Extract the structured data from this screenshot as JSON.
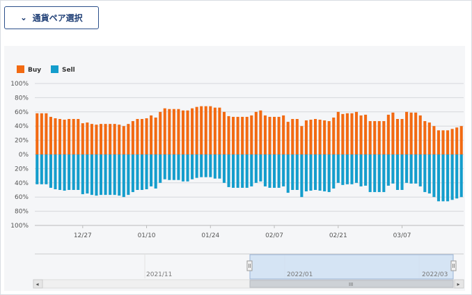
{
  "header": {
    "pair_button_label": "通貨ペア選択"
  },
  "colors": {
    "buy": "#f26a12",
    "sell": "#149dcc",
    "navigator_fill": "#cfe0f3",
    "gridline": "#d5d7db"
  },
  "chart_data": {
    "type": "bar",
    "stacked": true,
    "legend": [
      {
        "name": "Buy",
        "color": "#f26a12"
      },
      {
        "name": "Sell",
        "color": "#149dcc"
      }
    ],
    "legend_position": "top-left",
    "y_tick_labels": [
      "100%",
      "80%",
      "60%",
      "40%",
      "20%",
      "0%",
      "20%",
      "40%",
      "60%",
      "80%",
      "100%"
    ],
    "ylim": [
      -100,
      100
    ],
    "grid": true,
    "x_tick_labels": [
      "12/27",
      "01/10",
      "01/24",
      "02/07",
      "02/21",
      "03/07"
    ],
    "series": [
      {
        "name": "Buy",
        "values": [
          58,
          58,
          58,
          53,
          51,
          50,
          49,
          50,
          50,
          50,
          44,
          45,
          43,
          42,
          43,
          43,
          43,
          43,
          42,
          40,
          43,
          47,
          50,
          50,
          51,
          55,
          52,
          60,
          65,
          64,
          64,
          64,
          62,
          62,
          65,
          67,
          68,
          68,
          68,
          66,
          66,
          60,
          54,
          53,
          53,
          53,
          53,
          55,
          60,
          62,
          55,
          53,
          53,
          53,
          55,
          46,
          50,
          50,
          40,
          48,
          49,
          50,
          49,
          48,
          47,
          52,
          60,
          57,
          58,
          58,
          60,
          55,
          56,
          47,
          47,
          47,
          47,
          56,
          59,
          50,
          50,
          60,
          59,
          59,
          55,
          47,
          45,
          40,
          34,
          34,
          34,
          36,
          38,
          40
        ]
      },
      {
        "name": "Sell",
        "values": [
          42,
          42,
          42,
          47,
          49,
          50,
          51,
          50,
          50,
          50,
          56,
          55,
          57,
          58,
          57,
          57,
          57,
          57,
          58,
          60,
          57,
          53,
          50,
          50,
          49,
          45,
          48,
          40,
          35,
          36,
          36,
          36,
          38,
          38,
          35,
          33,
          32,
          32,
          32,
          34,
          34,
          40,
          46,
          47,
          47,
          47,
          47,
          45,
          40,
          38,
          45,
          47,
          47,
          47,
          45,
          54,
          50,
          50,
          60,
          52,
          51,
          50,
          51,
          52,
          53,
          48,
          40,
          43,
          42,
          42,
          40,
          45,
          44,
          53,
          53,
          53,
          53,
          44,
          41,
          50,
          50,
          40,
          41,
          41,
          45,
          53,
          55,
          60,
          66,
          66,
          66,
          64,
          62,
          60
        ]
      }
    ]
  },
  "navigator": {
    "labels": [
      "2021/11",
      "2022/01",
      "2022/03"
    ],
    "scrollbar_grip": "III",
    "left_arrow": "◂",
    "right_arrow": "▸"
  }
}
